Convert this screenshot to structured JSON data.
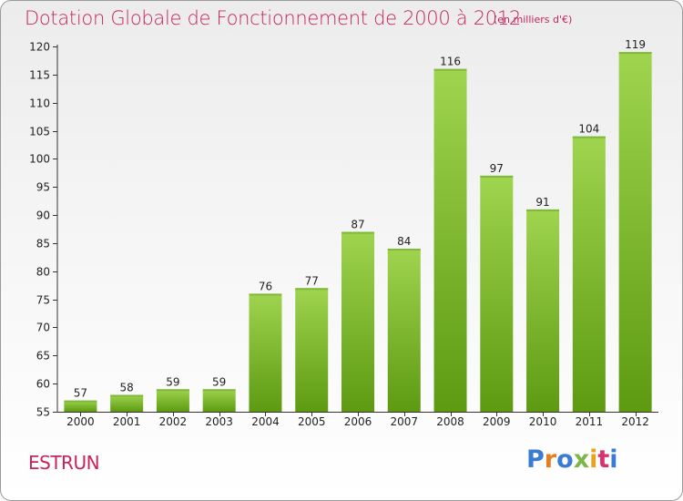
{
  "header": {
    "title": "Dotation Globale de Fonctionnement de 2000 à 2012",
    "subtitle": "(en milliers d'€)"
  },
  "footer": {
    "commune": "ESTRUN",
    "logo": "Proxiti"
  },
  "colors": {
    "title": "#c8235a",
    "bar_top": "#9fd44f",
    "bar_bottom": "#5d9a12",
    "logo_letters": [
      "#3a7bd5",
      "#e87d1e",
      "#3a7bd5",
      "#7ab648",
      "#e8a31e",
      "#d6336c",
      "#3a7bd5"
    ]
  },
  "chart_data": {
    "type": "bar",
    "title": "Dotation Globale de Fonctionnement de 2000 à 2012",
    "categories": [
      "2000",
      "2001",
      "2002",
      "2003",
      "2004",
      "2005",
      "2006",
      "2007",
      "2008",
      "2009",
      "2010",
      "2011",
      "2012"
    ],
    "values": [
      57,
      58,
      59,
      59,
      76,
      77,
      87,
      84,
      116,
      97,
      91,
      104,
      119
    ],
    "data_labels": [
      "57",
      "58",
      "59",
      "59",
      "76",
      "77",
      "87",
      "84",
      "116",
      "97",
      "91",
      "104",
      "119"
    ],
    "ylim": [
      55,
      120
    ],
    "yticks": [
      55,
      60,
      65,
      70,
      75,
      80,
      85,
      90,
      95,
      100,
      105,
      110,
      115,
      120
    ],
    "ytick_labels": [
      "55",
      "60",
      "65",
      "70",
      "75",
      "80",
      "85",
      "90",
      "95",
      "100",
      "105",
      "110",
      "115",
      "120"
    ],
    "grid": false,
    "xlabel": "",
    "ylabel": ""
  }
}
